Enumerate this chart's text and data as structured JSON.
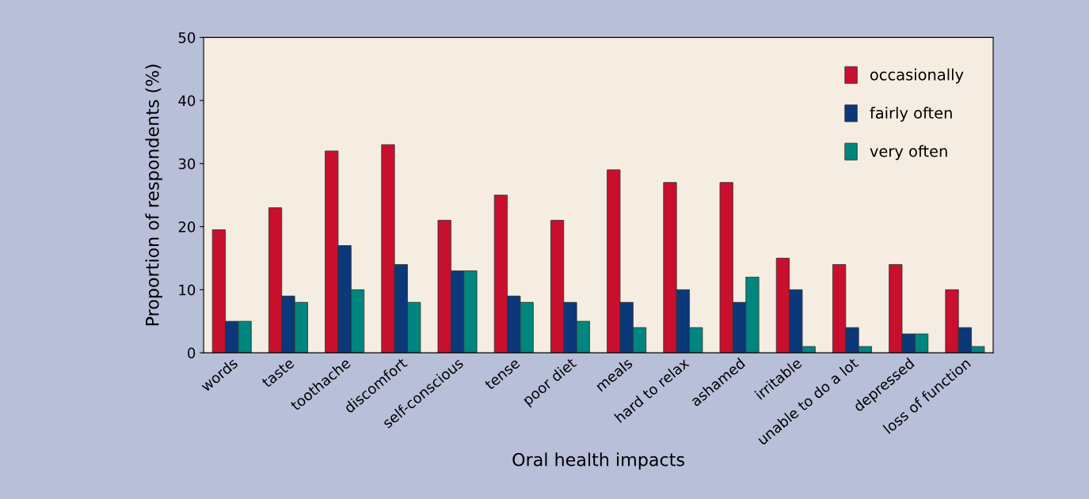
{
  "chart_data": {
    "type": "bar",
    "xlabel": "Oral health impacts",
    "ylabel": "Proportion of respondents (%)",
    "categories": [
      "words",
      "taste",
      "toothache",
      "discomfort",
      "self-conscious",
      "tense",
      "poor diet",
      "meals",
      "hard to relax",
      "ashamed",
      "irritable",
      "unable to do a lot",
      "depressed",
      "loss of function"
    ],
    "series": [
      {
        "name": "occasionally",
        "color": "#c8102e",
        "values": [
          19.5,
          23,
          32,
          33,
          21,
          25,
          21,
          29,
          27,
          27,
          15,
          14,
          14,
          10
        ]
      },
      {
        "name": "fairly often",
        "color": "#0b3878",
        "values": [
          5,
          9,
          17,
          14,
          13,
          9,
          8,
          8,
          10,
          8,
          10,
          4,
          3,
          4
        ]
      },
      {
        "name": "very often",
        "color": "#00857f",
        "values": [
          5,
          8,
          10,
          8,
          13,
          8,
          5,
          4,
          4,
          12,
          1,
          1,
          3,
          1
        ]
      }
    ],
    "ylim": [
      0,
      50
    ],
    "yticks": [
      0,
      10,
      20,
      30,
      40,
      50
    ],
    "grid": false,
    "legend": "top right"
  }
}
